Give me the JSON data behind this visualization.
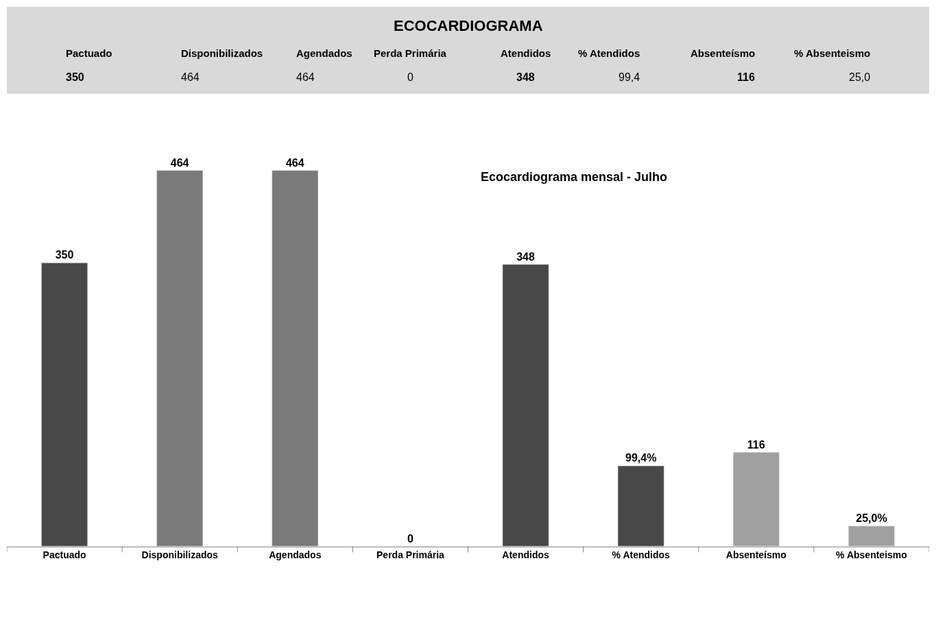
{
  "chart_data": [
    {
      "type": "other",
      "title": "ECOCARDIOGRAMA",
      "annotations": [
        "Pactuado",
        "Disponibilizados",
        "Agendados",
        "Perda Primária",
        "Atendidos",
        "% Atendidos",
        "Absenteísmo",
        "% Absenteismo",
        "350",
        "464",
        "464",
        "0",
        "348",
        "99,4",
        "116",
        "25,0"
      ]
    },
    {
      "type": "bar",
      "title": "Ecocardiograma mensal - Julho",
      "categories": [
        "Pactuado",
        "Disponibilizados",
        "Agendados",
        "Perda Primária",
        "Atendidos",
        "% Atendidos",
        "Absenteísmo",
        "% Absenteismo"
      ],
      "values": [
        350,
        464,
        464,
        0,
        348,
        99.4,
        116,
        25.0
      ],
      "colors": [
        "#484848",
        "#7a7a7a",
        "#7a7a7a",
        null,
        "#484848",
        "#484848",
        "#a0a0a0",
        "#a0a0a0"
      ],
      "value_labels": [
        "350",
        "464",
        "464",
        "0",
        "348",
        "99,4%",
        "116",
        "25,0%"
      ],
      "legend": false
    }
  ]
}
